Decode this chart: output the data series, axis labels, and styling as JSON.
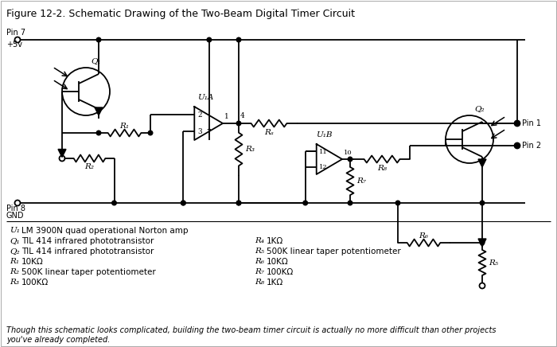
{
  "title": "Figure 12-2. Schematic Drawing of the Two-Beam Digital Timer Circuit",
  "footer": "Though this schematic looks complicated, building the two-beam timer circuit is actually no more difficult than other projects\nyou've already completed.",
  "bg_color": "#ffffff",
  "line_color": "#000000",
  "legend_left": [
    [
      "U₁",
      "LM 3900N quad operational Norton amp"
    ],
    [
      "Q₁",
      "TIL 414 infrared phototransistor"
    ],
    [
      "Q₂",
      "TIL 414 infrared phototransistor"
    ],
    [
      "R₁",
      "10KΩ"
    ],
    [
      "R₂",
      "500K linear taper potentiometer"
    ],
    [
      "R₃",
      "100KΩ"
    ]
  ],
  "legend_right": [
    [
      "R₄",
      "1KΩ"
    ],
    [
      "R₅",
      "500K linear taper potentiometer"
    ],
    [
      "R₆",
      "10KΩ"
    ],
    [
      "R₇",
      "100KΩ"
    ],
    [
      "R₈",
      "1KΩ"
    ]
  ]
}
